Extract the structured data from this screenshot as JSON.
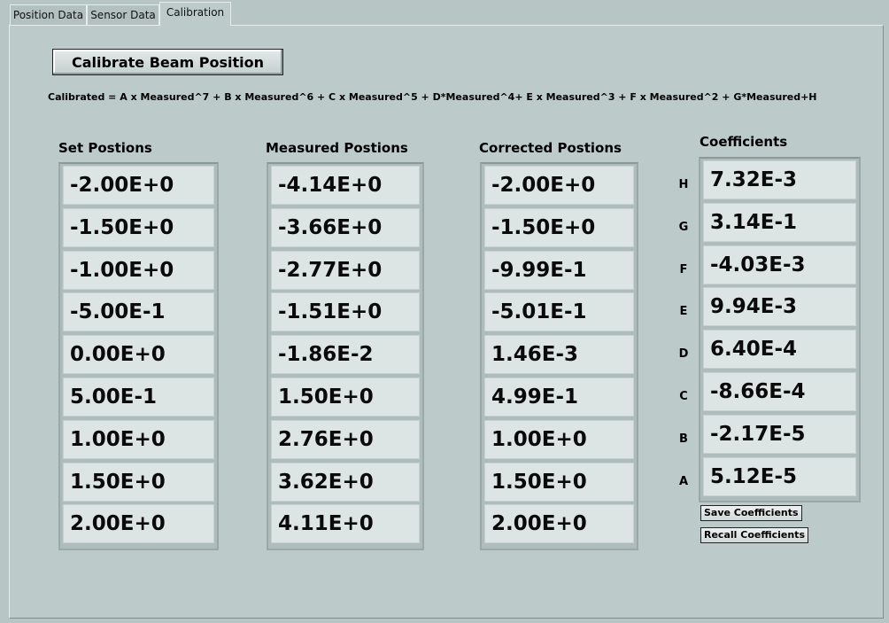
{
  "tabs": [
    {
      "label": "Position Data"
    },
    {
      "label": "Sensor Data"
    },
    {
      "label": "Calibration",
      "active": true
    }
  ],
  "calibrate_button": "Calibrate Beam Position",
  "formula": "Calibrated = A x Measured^7 + B x Measured^6 + C x Measured^5 + D*Measured^4+ E x Measured^3 + F x Measured^2 + G*Measured+H",
  "columns": {
    "set": {
      "header": "Set Postions",
      "values": [
        "-2.00E+0",
        "-1.50E+0",
        "-1.00E+0",
        "-5.00E-1",
        "0.00E+0",
        "5.00E-1",
        "1.00E+0",
        "1.50E+0",
        "2.00E+0"
      ]
    },
    "measured": {
      "header": "Measured Postions",
      "values": [
        "-4.14E+0",
        "-3.66E+0",
        "-2.77E+0",
        "-1.51E+0",
        "-1.86E-2",
        "1.50E+0",
        "2.76E+0",
        "3.62E+0",
        "4.11E+0"
      ]
    },
    "corrected": {
      "header": "Corrected Postions",
      "values": [
        "-2.00E+0",
        "-1.50E+0",
        "-9.99E-1",
        "-5.01E-1",
        "1.46E-3",
        "4.99E-1",
        "1.00E+0",
        "1.50E+0",
        "2.00E+0"
      ]
    }
  },
  "coefficients": {
    "header": "Coefficients",
    "items": [
      {
        "label": "H",
        "value": "7.32E-3"
      },
      {
        "label": "G",
        "value": "3.14E-1"
      },
      {
        "label": "F",
        "value": "-4.03E-3"
      },
      {
        "label": "E",
        "value": "9.94E-3"
      },
      {
        "label": "D",
        "value": "6.40E-4"
      },
      {
        "label": "C",
        "value": "-8.66E-4"
      },
      {
        "label": "B",
        "value": "-2.17E-5"
      },
      {
        "label": "A",
        "value": "5.12E-5"
      }
    ]
  },
  "save_button": "Save Coefficients",
  "recall_button": "Recall Coefficients"
}
